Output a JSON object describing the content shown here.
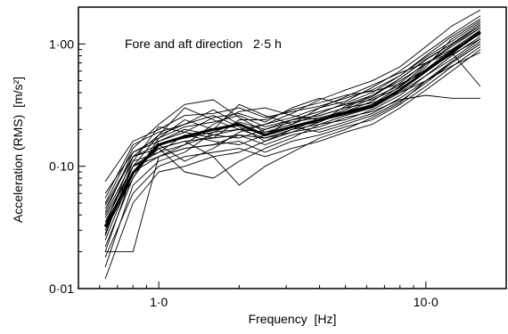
{
  "chart_data": {
    "type": "line",
    "title": "",
    "annotation": "Fore and aft direction   2·5 h",
    "xlabel": "Frequency  [Hz]",
    "ylabel": "Acceleration (RMS)  [m/s²]",
    "x_scale": "log",
    "y_scale": "log",
    "xlim": [
      0.5,
      20
    ],
    "ylim": [
      0.01,
      2
    ],
    "x_ticks": [
      {
        "value": 1,
        "label": "1·0"
      },
      {
        "value": 10,
        "label": "10·0"
      }
    ],
    "y_ticks": [
      {
        "value": 0.01,
        "label": "0·01"
      },
      {
        "value": 0.1,
        "label": "0·10"
      },
      {
        "value": 1,
        "label": "1·00"
      }
    ],
    "grid": false,
    "x": [
      0.63,
      0.8,
      1.0,
      1.25,
      1.6,
      2.0,
      2.5,
      3.15,
      4.0,
      5.0,
      6.3,
      8.0,
      10.0,
      12.5,
      16.0
    ],
    "mean_series": {
      "values": [
        0.032,
        0.088,
        0.15,
        0.175,
        0.2,
        0.22,
        0.18,
        0.21,
        0.24,
        0.27,
        0.31,
        0.42,
        0.6,
        0.85,
        1.25
      ]
    },
    "series": [
      {
        "values": [
          0.075,
          0.16,
          0.2,
          0.26,
          0.27,
          0.3,
          0.25,
          0.28,
          0.31,
          0.36,
          0.42,
          0.55,
          0.78,
          1.05,
          1.5
        ]
      },
      {
        "values": [
          0.06,
          0.13,
          0.17,
          0.21,
          0.23,
          0.26,
          0.21,
          0.24,
          0.28,
          0.32,
          0.38,
          0.5,
          0.68,
          0.95,
          1.35
        ]
      },
      {
        "values": [
          0.045,
          0.12,
          0.15,
          0.17,
          0.19,
          0.2,
          0.17,
          0.2,
          0.22,
          0.26,
          0.3,
          0.4,
          0.55,
          0.8,
          1.15
        ]
      },
      {
        "values": [
          0.035,
          0.1,
          0.14,
          0.16,
          0.17,
          0.18,
          0.15,
          0.18,
          0.2,
          0.23,
          0.27,
          0.36,
          0.5,
          0.72,
          1.05
        ]
      },
      {
        "values": [
          0.025,
          0.09,
          0.12,
          0.14,
          0.15,
          0.16,
          0.13,
          0.16,
          0.18,
          0.21,
          0.24,
          0.32,
          0.45,
          0.65,
          0.95
        ]
      },
      {
        "values": [
          0.018,
          0.06,
          0.1,
          0.12,
          0.13,
          0.14,
          0.12,
          0.14,
          0.16,
          0.19,
          0.22,
          0.3,
          0.42,
          0.6,
          0.9
        ]
      },
      {
        "values": [
          0.05,
          0.14,
          0.22,
          0.32,
          0.35,
          0.25,
          0.19,
          0.22,
          0.3,
          0.34,
          0.44,
          0.6,
          0.85,
          1.2,
          1.7
        ]
      },
      {
        "values": [
          0.04,
          0.11,
          0.13,
          0.15,
          0.22,
          0.28,
          0.3,
          0.26,
          0.24,
          0.29,
          0.36,
          0.46,
          0.62,
          0.9,
          1.3
        ]
      },
      {
        "values": [
          0.03,
          0.08,
          0.16,
          0.2,
          0.18,
          0.17,
          0.2,
          0.24,
          0.26,
          0.3,
          0.33,
          0.4,
          0.5,
          0.7,
          1.0
        ]
      },
      {
        "values": [
          0.02,
          0.02,
          0.12,
          0.14,
          0.15,
          0.18,
          0.17,
          0.19,
          0.21,
          0.25,
          0.28,
          0.35,
          0.38,
          0.36,
          0.36
        ]
      },
      {
        "values": [
          0.028,
          0.1,
          0.18,
          0.3,
          0.24,
          0.2,
          0.22,
          0.27,
          0.35,
          0.42,
          0.5,
          0.65,
          0.95,
          1.4,
          1.9
        ]
      },
      {
        "values": [
          0.033,
          0.12,
          0.14,
          0.09,
          0.08,
          0.11,
          0.14,
          0.17,
          0.22,
          0.24,
          0.29,
          0.38,
          0.55,
          0.75,
          1.1
        ]
      },
      {
        "values": [
          0.015,
          0.07,
          0.11,
          0.13,
          0.19,
          0.23,
          0.2,
          0.23,
          0.25,
          0.28,
          0.34,
          0.48,
          0.7,
          0.9,
          1.2
        ]
      },
      {
        "values": [
          0.055,
          0.15,
          0.19,
          0.22,
          0.26,
          0.21,
          0.16,
          0.19,
          0.23,
          0.31,
          0.37,
          0.52,
          0.74,
          1.0,
          1.4
        ]
      },
      {
        "values": [
          0.038,
          0.1,
          0.13,
          0.18,
          0.16,
          0.15,
          0.18,
          0.21,
          0.19,
          0.22,
          0.26,
          0.34,
          0.48,
          0.7,
          1.0
        ]
      },
      {
        "values": [
          0.022,
          0.08,
          0.17,
          0.24,
          0.2,
          0.32,
          0.26,
          0.22,
          0.27,
          0.33,
          0.4,
          0.55,
          0.8,
          1.15,
          1.6
        ]
      },
      {
        "values": [
          0.03,
          0.09,
          0.15,
          0.11,
          0.14,
          0.19,
          0.22,
          0.25,
          0.3,
          0.37,
          0.46,
          0.58,
          0.7,
          0.85,
          0.45
        ]
      },
      {
        "values": [
          0.027,
          0.11,
          0.21,
          0.19,
          0.17,
          0.24,
          0.24,
          0.29,
          0.33,
          0.38,
          0.41,
          0.47,
          0.6,
          0.88,
          1.25
        ]
      },
      {
        "values": [
          0.012,
          0.05,
          0.09,
          0.1,
          0.12,
          0.07,
          0.1,
          0.13,
          0.17,
          0.2,
          0.25,
          0.33,
          0.5,
          0.66,
          0.85
        ]
      },
      {
        "values": [
          0.042,
          0.13,
          0.16,
          0.19,
          0.25,
          0.27,
          0.23,
          0.3,
          0.36,
          0.32,
          0.35,
          0.44,
          0.65,
          1.1,
          1.55
        ]
      },
      {
        "values": [
          0.02,
          0.09,
          0.14,
          0.16,
          0.12,
          0.13,
          0.16,
          0.2,
          0.24,
          0.28,
          0.31,
          0.42,
          0.6,
          0.82,
          1.1
        ]
      },
      {
        "values": [
          0.048,
          0.12,
          0.18,
          0.22,
          0.29,
          0.22,
          0.18,
          0.24,
          0.26,
          0.3,
          0.38,
          0.52,
          0.75,
          1.0,
          1.45
        ]
      },
      {
        "values": [
          0.035,
          0.1,
          0.12,
          0.15,
          0.18,
          0.2,
          0.19,
          0.21,
          0.23,
          0.28,
          0.32,
          0.45,
          0.68,
          0.98,
          1.35
        ]
      }
    ]
  }
}
